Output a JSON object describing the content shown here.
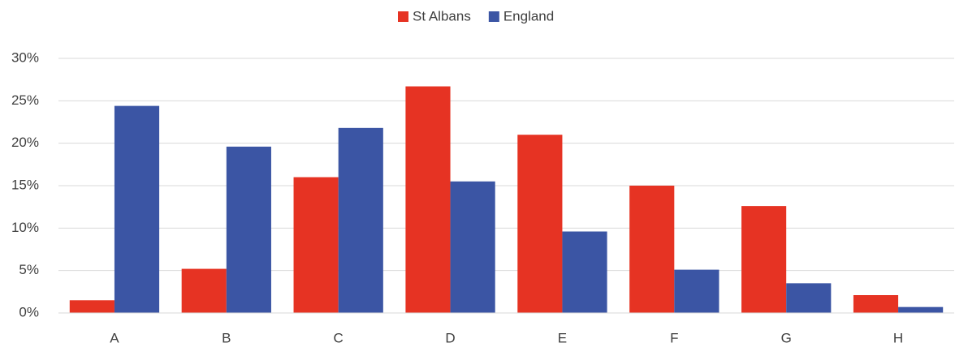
{
  "chart_data": {
    "type": "bar",
    "legend": "top",
    "grid": true,
    "categories": [
      "A",
      "B",
      "C",
      "D",
      "E",
      "F",
      "G",
      "H"
    ],
    "series": [
      {
        "name": "St Albans",
        "color": "#e63323",
        "values": [
          1.5,
          5.2,
          16.0,
          26.7,
          21.0,
          15.0,
          12.6,
          2.1
        ]
      },
      {
        "name": "England",
        "color": "#3b55a4",
        "values": [
          24.4,
          19.6,
          21.8,
          15.5,
          9.6,
          5.1,
          3.5,
          0.7
        ]
      }
    ],
    "ylim": [
      0,
      30
    ],
    "yticks": [
      {
        "value": 0,
        "label": "0%"
      },
      {
        "value": 5,
        "label": "5%"
      },
      {
        "value": 10,
        "label": "10%"
      },
      {
        "value": 15,
        "label": "15%"
      },
      {
        "value": 20,
        "label": "20%"
      },
      {
        "value": 25,
        "label": "25%"
      },
      {
        "value": 30,
        "label": "30%"
      }
    ]
  }
}
